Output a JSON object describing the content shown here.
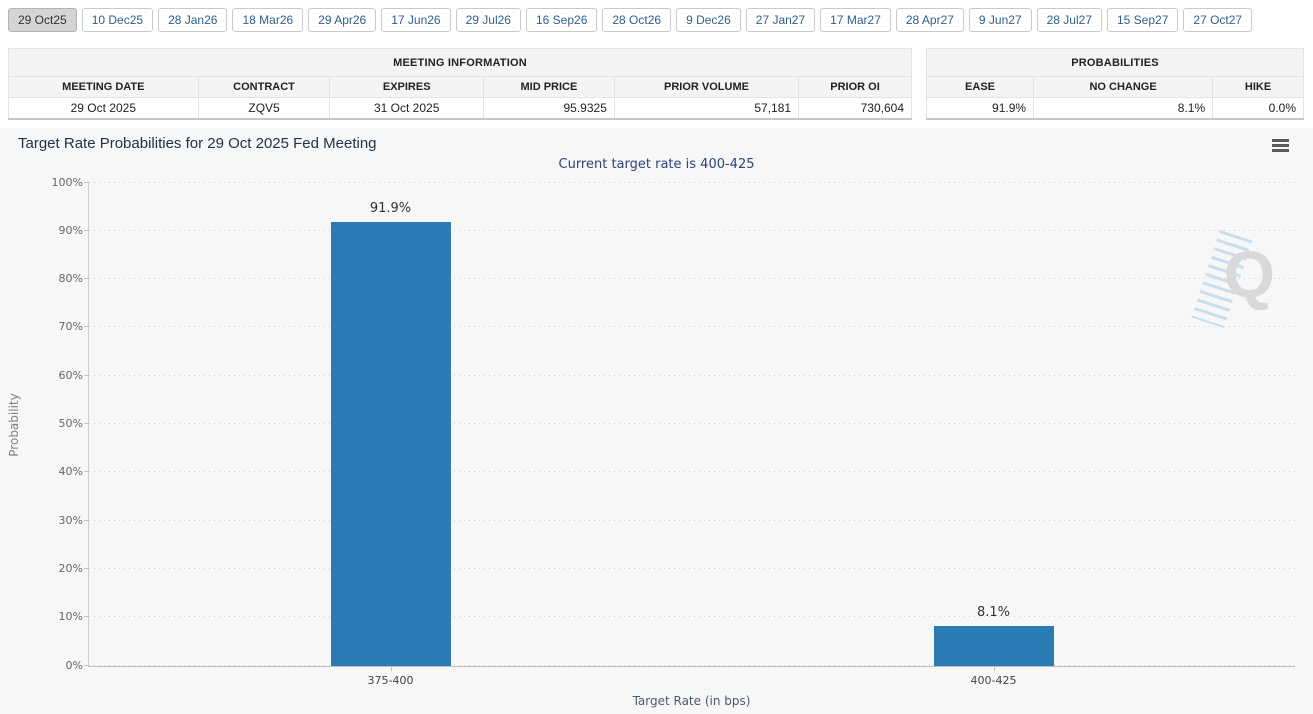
{
  "meeting_tabs": {
    "selected": "29 Oct25",
    "items": [
      "29 Oct25",
      "10 Dec25",
      "28 Jan26",
      "18 Mar26",
      "29 Apr26",
      "17 Jun26",
      "29 Jul26",
      "16 Sep26",
      "28 Oct26",
      "9 Dec26",
      "27 Jan27",
      "17 Mar27",
      "28 Apr27",
      "9 Jun27",
      "28 Jul27",
      "15 Sep27",
      "27 Oct27"
    ]
  },
  "meeting_information": {
    "title": "MEETING INFORMATION",
    "columns": [
      "MEETING DATE",
      "CONTRACT",
      "EXPIRES",
      "MID PRICE",
      "PRIOR VOLUME",
      "PRIOR OI"
    ],
    "values": [
      "29 Oct 2025",
      "ZQV5",
      "31 Oct 2025",
      "95.9325",
      "57,181",
      "730,604"
    ]
  },
  "probabilities_table": {
    "title": "PROBABILITIES",
    "columns": [
      "EASE",
      "NO CHANGE",
      "HIKE"
    ],
    "values": [
      "91.9%",
      "8.1%",
      "0.0%"
    ]
  },
  "chart": {
    "title": "Target Rate Probabilities for 29 Oct 2025 Fed Meeting",
    "subtitle": "Current target rate is 400-425",
    "menu_icon": "hamburger-menu-icon",
    "watermark_letter": "Q"
  },
  "chart_data": {
    "type": "bar",
    "categories": [
      "375-400",
      "400-425"
    ],
    "values": [
      91.9,
      8.1
    ],
    "value_labels": [
      "91.9%",
      "8.1%"
    ],
    "title": "Target Rate Probabilities for 29 Oct 2025 Fed Meeting",
    "subtitle": "Current target rate is 400-425",
    "xlabel": "Target Rate (in bps)",
    "ylabel": "Probability",
    "ylim": [
      0,
      100
    ],
    "ytick_step": 10,
    "grid": "dotted-horizontal",
    "legend": "none",
    "bar_color": "#2b7cb5"
  },
  "colors": {
    "bar": "#2b7cb5",
    "tab_text": "#2e5f8c",
    "subtitle_text": "#2e4373",
    "panel_background": "#f7f7f7"
  }
}
